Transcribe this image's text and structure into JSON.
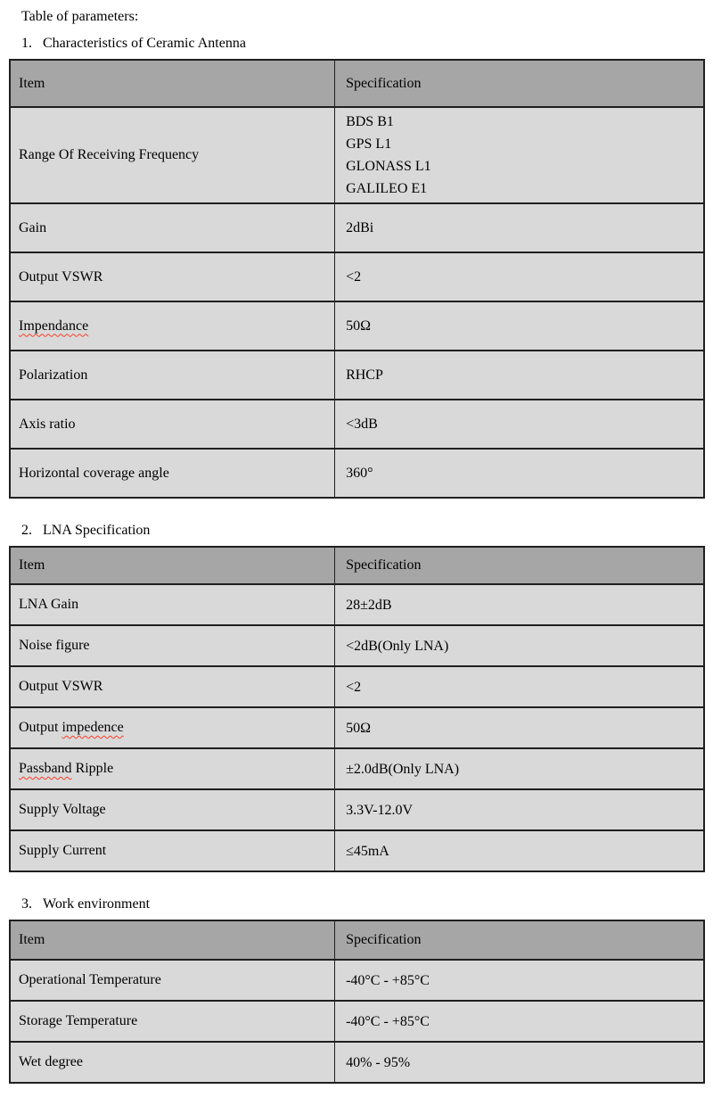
{
  "page_title": "Table of parameters:",
  "colors": {
    "header_bg": "#a6a6a6",
    "cell_bg": "#d9d9d9",
    "border": "#1f1f1f",
    "squiggle": "#fa3c28",
    "text": "#000000"
  },
  "sections": [
    {
      "number": "1.",
      "title": "Characteristics of Ceramic Antenna",
      "header": {
        "item": "Item",
        "spec": "Specification"
      },
      "rows": [
        {
          "item": [
            {
              "text": "Range Of Receiving Frequency",
              "misspelled": false
            }
          ],
          "spec": [
            "BDS B1",
            "GPS L1",
            "GLONASS L1",
            "GALILEO E1"
          ]
        },
        {
          "item": [
            {
              "text": "Gain",
              "misspelled": false
            }
          ],
          "spec": [
            "2dBi"
          ]
        },
        {
          "item": [
            {
              "text": "Output VSWR",
              "misspelled": false
            }
          ],
          "spec": [
            "<2"
          ]
        },
        {
          "item": [
            {
              "text": "Impendance",
              "misspelled": true
            }
          ],
          "spec": [
            "50Ω"
          ]
        },
        {
          "item": [
            {
              "text": "Polarization",
              "misspelled": false
            }
          ],
          "spec": [
            "RHCP"
          ]
        },
        {
          "item": [
            {
              "text": "Axis ratio",
              "misspelled": false
            }
          ],
          "spec": [
            "<3dB"
          ]
        },
        {
          "item": [
            {
              "text": "Horizontal coverage angle",
              "misspelled": false
            }
          ],
          "spec": [
            "360°"
          ]
        }
      ]
    },
    {
      "number": "2.",
      "title": "LNA Specification",
      "header": {
        "item": "Item",
        "spec": "Specification"
      },
      "rows": [
        {
          "item": [
            {
              "text": "LNA Gain",
              "misspelled": false
            }
          ],
          "spec": [
            "28±2dB"
          ]
        },
        {
          "item": [
            {
              "text": "Noise figure",
              "misspelled": false
            }
          ],
          "spec": [
            "<2dB(Only LNA)"
          ]
        },
        {
          "item": [
            {
              "text": "Output VSWR",
              "misspelled": false
            }
          ],
          "spec": [
            "<2"
          ]
        },
        {
          "item": [
            {
              "text": "Output ",
              "misspelled": false
            },
            {
              "text": "impedence",
              "misspelled": true
            }
          ],
          "spec": [
            "50Ω"
          ]
        },
        {
          "item": [
            {
              "text": "Passband",
              "misspelled": true
            },
            {
              "text": " Ripple",
              "misspelled": false
            }
          ],
          "spec": [
            "±2.0dB(Only LNA)"
          ]
        },
        {
          "item": [
            {
              "text": "Supply Voltage",
              "misspelled": false
            }
          ],
          "spec": [
            "3.3V-12.0V"
          ]
        },
        {
          "item": [
            {
              "text": "Supply Current",
              "misspelled": false
            }
          ],
          "spec": [
            "≤45mA"
          ]
        }
      ]
    },
    {
      "number": "3.",
      "title": "Work environment",
      "header": {
        "item": "Item",
        "spec": "Specification"
      },
      "rows": [
        {
          "item": [
            {
              "text": "Operational Temperature",
              "misspelled": false
            }
          ],
          "spec": [
            "-40°C - +85°C"
          ]
        },
        {
          "item": [
            {
              "text": "Storage Temperature",
              "misspelled": false
            }
          ],
          "spec": [
            "-40°C - +85°C"
          ]
        },
        {
          "item": [
            {
              "text": "Wet degree",
              "misspelled": false
            }
          ],
          "spec": [
            "40% - 95%"
          ]
        }
      ]
    }
  ]
}
